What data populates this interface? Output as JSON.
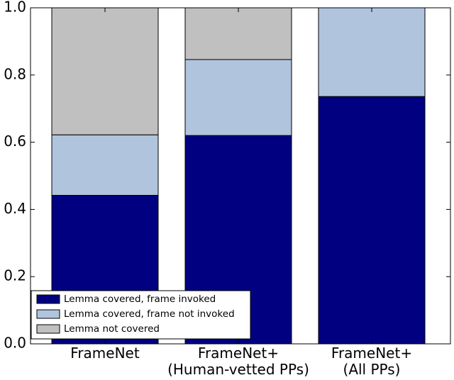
{
  "chart_data": {
    "type": "stacked_bar",
    "categories": [
      "FrameNet",
      "FrameNet+\n(Human-vetted PPs)",
      "FrameNet+\n(All PPs)"
    ],
    "series": [
      {
        "name": "Lemma covered, frame invoked",
        "color": "#000080",
        "values": [
          0.442,
          0.62,
          0.736
        ]
      },
      {
        "name": "Lemma covered, frame not invoked",
        "color": "#b0c4de",
        "values": [
          0.18,
          0.226,
          0.264
        ]
      },
      {
        "name": "Lemma not covered",
        "color": "#c0c0c0",
        "values": [
          0.378,
          0.154,
          0
        ]
      }
    ],
    "ylim": [
      0,
      1
    ],
    "yticks": [
      {
        "value": 0,
        "label": "0.0"
      },
      {
        "value": 0.2,
        "label": "0.2"
      },
      {
        "value": 0.4,
        "label": "0.4"
      },
      {
        "value": 0.6,
        "label": "0.6"
      },
      {
        "value": 0.8,
        "label": "0.8"
      },
      {
        "value": 1,
        "label": "1.0"
      }
    ],
    "legend": "lower left"
  }
}
